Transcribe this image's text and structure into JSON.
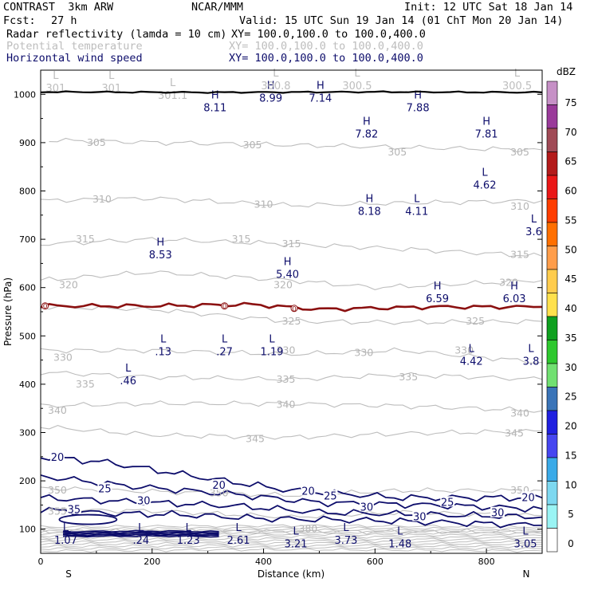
{
  "header": {
    "title": "CONTRAST  3km ARW",
    "source": "NCAR/MMM",
    "init": "Init: 12 UTC Sat 18 Jan 14",
    "fcst_label": "Fcst:",
    "fcst_value": "27 h",
    "valid": "Valid: 15 UTC Sun 19 Jan 14 (01 ChT Mon 20 Jan 14)",
    "fields": [
      {
        "name": "Radar reflectivity (lamda = 10 cm)",
        "xy": "XY= 100.0,100.0 to 100.0,400.0",
        "color": "#000000"
      },
      {
        "name": "Potential temperature",
        "xy": "XY= 100.0,100.0 to 100.0,400.0",
        "color": "#bdbdbd"
      },
      {
        "name": "Horizontal wind speed",
        "xy": "XY= 100.0,100.0 to 100.0,400.0",
        "color": "#0d0d6b"
      }
    ]
  },
  "chart_data": {
    "type": "cross-section",
    "xlabel": "Distance (km)",
    "ylabel": "Pressure (hPa)",
    "xlim": [
      0,
      900
    ],
    "ylim": [
      1050,
      50
    ],
    "x_ticks": [
      "0",
      "200",
      "400",
      "600",
      "800"
    ],
    "y_ticks": [
      "100",
      "200",
      "300",
      "400",
      "500",
      "600",
      "700",
      "800",
      "900",
      "1000"
    ],
    "x_end_labels": {
      "left": "S",
      "right": "N"
    },
    "colorbar": {
      "unit": "dBZ",
      "levels": [
        "75",
        "70",
        "65",
        "60",
        "55",
        "50",
        "45",
        "40",
        "35",
        "30",
        "25",
        "20",
        "15",
        "10",
        "5",
        "0"
      ],
      "colors": [
        "#c690c6",
        "#9a3a9a",
        "#a04a56",
        "#b31a1a",
        "#ea1717",
        "#ff3d00",
        "#ff6f00",
        "#ff9d4a",
        "#ffcc4d",
        "#ffe14d",
        "#0fa01f",
        "#2ec82e",
        "#71e071",
        "#3a74b8",
        "#2020e0",
        "#4646f0",
        "#3aaae8",
        "#7dd8f0",
        "#9af4f4",
        "#ffffff"
      ]
    },
    "potential_temperature_levels": [
      {
        "label": "305",
        "values": [
          [
            15,
            905
          ],
          [
            225,
            900
          ],
          [
            450,
            895
          ],
          [
            650,
            890
          ],
          [
            900,
            885
          ]
        ]
      },
      {
        "label": "310",
        "values": [
          [
            0,
            780
          ],
          [
            200,
            785
          ],
          [
            450,
            770
          ],
          [
            650,
            775
          ],
          [
            900,
            780
          ]
        ]
      },
      {
        "label": "315",
        "values": [
          [
            0,
            690
          ],
          [
            200,
            700
          ],
          [
            450,
            690
          ],
          [
            650,
            680
          ],
          [
            900,
            665
          ]
        ]
      },
      {
        "label": "320",
        "values": [
          [
            0,
            615
          ],
          [
            200,
            632
          ],
          [
            450,
            615
          ],
          [
            600,
            600
          ],
          [
            900,
            615
          ]
        ]
      },
      {
        "label": "325",
        "values": [
          [
            0,
            560
          ],
          [
            200,
            555
          ],
          [
            450,
            530
          ],
          [
            650,
            528
          ],
          [
            900,
            530
          ]
        ]
      },
      {
        "label": "330",
        "values": [
          [
            0,
            470
          ],
          [
            200,
            470
          ],
          [
            450,
            462
          ],
          [
            650,
            470
          ],
          [
            900,
            445
          ]
        ]
      },
      {
        "label": "335",
        "values": [
          [
            0,
            425
          ],
          [
            200,
            415
          ],
          [
            450,
            410
          ],
          [
            650,
            420
          ],
          [
            900,
            410
          ]
        ]
      },
      {
        "label": "340",
        "values": [
          [
            0,
            355
          ],
          [
            200,
            360
          ],
          [
            450,
            360
          ],
          [
            650,
            355
          ],
          [
            900,
            345
          ]
        ]
      },
      {
        "label": "345",
        "values": [
          [
            0,
            312
          ],
          [
            200,
            295
          ],
          [
            450,
            290
          ],
          [
            650,
            298
          ],
          [
            900,
            303
          ]
        ]
      },
      {
        "label": "350",
        "values": [
          [
            0,
            185
          ],
          [
            200,
            178
          ],
          [
            450,
            170
          ],
          [
            650,
            180
          ],
          [
            900,
            180
          ]
        ]
      },
      {
        "label": "355",
        "values": [
          [
            0,
            140
          ],
          [
            200,
            138
          ],
          [
            450,
            125
          ],
          [
            650,
            135
          ],
          [
            900,
            128
          ]
        ]
      },
      {
        "label": "380",
        "values": [
          [
            0,
            95
          ],
          [
            450,
            95
          ],
          [
            900,
            95
          ]
        ]
      }
    ],
    "isotherm_zero": {
      "label": "0",
      "values": [
        [
          0,
          562
        ],
        [
          200,
          562
        ],
        [
          380,
          565
        ],
        [
          500,
          555
        ],
        [
          700,
          560
        ],
        [
          900,
          560
        ]
      ]
    },
    "wind_speed_contours": [
      {
        "label": "20",
        "values": [
          [
            0,
            250
          ],
          [
            120,
            238
          ],
          [
            300,
            205
          ],
          [
            450,
            180
          ],
          [
            650,
            165
          ],
          [
            900,
            165
          ]
        ]
      },
      {
        "label": "25",
        "values": [
          [
            0,
            210
          ],
          [
            150,
            190
          ],
          [
            350,
            172
          ],
          [
            500,
            155
          ],
          [
            700,
            150
          ],
          [
            900,
            142
          ]
        ]
      },
      {
        "label": "30",
        "values": [
          [
            0,
            165
          ],
          [
            200,
            155
          ],
          [
            350,
            148
          ],
          [
            500,
            135
          ],
          [
            700,
            130
          ],
          [
            900,
            125
          ]
        ]
      },
      {
        "label": "35",
        "values": [
          [
            0,
            140
          ],
          [
            120,
            133
          ],
          [
            250,
            130
          ],
          [
            400,
            122
          ],
          [
            600,
            118
          ],
          [
            900,
            108
          ]
        ]
      }
    ],
    "wind_labels": [
      {
        "label": "35",
        "x": 60,
        "p": 140
      },
      {
        "label": "30",
        "x": 185,
        "p": 158
      },
      {
        "label": "25",
        "x": 115,
        "p": 183
      },
      {
        "label": "20",
        "x": 30,
        "p": 248
      },
      {
        "label": "20",
        "x": 320,
        "p": 190
      },
      {
        "label": "25",
        "x": 520,
        "p": 168
      },
      {
        "label": "20",
        "x": 480,
        "p": 178
      },
      {
        "label": "30",
        "x": 585,
        "p": 145
      },
      {
        "label": "30",
        "x": 680,
        "p": 125
      },
      {
        "label": "25",
        "x": 730,
        "p": 155
      },
      {
        "label": "30",
        "x": 820,
        "p": 133
      },
      {
        "label": "20",
        "x": 875,
        "p": 165
      }
    ],
    "theta_labels": [
      {
        "label": "380",
        "x": 480,
        "p": 100
      },
      {
        "label": "355",
        "x": 30,
        "p": 137
      },
      {
        "label": "350",
        "x": 30,
        "p": 180
      },
      {
        "label": "350",
        "x": 320,
        "p": 175
      },
      {
        "label": "350",
        "x": 860,
        "p": 180
      },
      {
        "label": "345",
        "x": 385,
        "p": 287
      },
      {
        "label": "345",
        "x": 850,
        "p": 298
      },
      {
        "label": "340",
        "x": 30,
        "p": 345
      },
      {
        "label": "340",
        "x": 440,
        "p": 358
      },
      {
        "label": "340",
        "x": 860,
        "p": 340
      },
      {
        "label": "335",
        "x": 80,
        "p": 400
      },
      {
        "label": "335",
        "x": 440,
        "p": 410
      },
      {
        "label": "335",
        "x": 660,
        "p": 415
      },
      {
        "label": "330",
        "x": 40,
        "p": 455
      },
      {
        "label": "330",
        "x": 440,
        "p": 470
      },
      {
        "label": "330",
        "x": 580,
        "p": 465
      },
      {
        "label": "330",
        "x": 760,
        "p": 470
      },
      {
        "label": "325",
        "x": 450,
        "p": 530
      },
      {
        "label": "325",
        "x": 780,
        "p": 530
      },
      {
        "label": "320",
        "x": 50,
        "p": 605
      },
      {
        "label": "320",
        "x": 435,
        "p": 605
      },
      {
        "label": "320",
        "x": 840,
        "p": 610
      },
      {
        "label": "315",
        "x": 80,
        "p": 700
      },
      {
        "label": "315",
        "x": 360,
        "p": 700
      },
      {
        "label": "315",
        "x": 450,
        "p": 690
      },
      {
        "label": "315",
        "x": 860,
        "p": 668
      },
      {
        "label": "310",
        "x": 110,
        "p": 783
      },
      {
        "label": "310",
        "x": 400,
        "p": 772
      },
      {
        "label": "310",
        "x": 860,
        "p": 768
      },
      {
        "label": "305",
        "x": 100,
        "p": 900
      },
      {
        "label": "305",
        "x": 380,
        "p": 895
      },
      {
        "label": "305",
        "x": 640,
        "p": 880
      },
      {
        "label": "305",
        "x": 860,
        "p": 880
      }
    ],
    "extrema": [
      {
        "type": "L",
        "value": "1.07",
        "x": 45,
        "p": 90,
        "color": "dark"
      },
      {
        "type": "L",
        "value": ".24",
        "x": 180,
        "p": 90,
        "color": "dark"
      },
      {
        "type": "L",
        "value": "1.23",
        "x": 265,
        "p": 90,
        "color": "dark"
      },
      {
        "type": "L",
        "value": "2.61",
        "x": 355,
        "p": 90,
        "color": "dark"
      },
      {
        "type": "L",
        "value": "3.21",
        "x": 458,
        "p": 82,
        "color": "dark"
      },
      {
        "type": "L",
        "value": "3.73",
        "x": 548,
        "p": 90,
        "color": "dark"
      },
      {
        "type": "L",
        "value": "1.48",
        "x": 645,
        "p": 82,
        "color": "dark"
      },
      {
        "type": "L",
        "value": "3.05",
        "x": 870,
        "p": 82,
        "color": "dark"
      },
      {
        "type": "L",
        "value": ".46",
        "x": 157,
        "p": 420,
        "color": "dark"
      },
      {
        "type": "L",
        "value": ".13",
        "x": 220,
        "p": 480,
        "color": "dark"
      },
      {
        "type": "L",
        "value": ".27",
        "x": 330,
        "p": 480,
        "color": "dark"
      },
      {
        "type": "L",
        "value": "1.19",
        "x": 415,
        "p": 480,
        "color": "dark"
      },
      {
        "type": "L",
        "value": "4.42",
        "x": 773,
        "p": 460,
        "color": "dark"
      },
      {
        "type": "L",
        "value": "3.8",
        "x": 880,
        "p": 460,
        "color": "dark"
      },
      {
        "type": "H",
        "value": "6.59",
        "x": 712,
        "p": 590,
        "color": "dark"
      },
      {
        "type": "H",
        "value": "6.03",
        "x": 850,
        "p": 590,
        "color": "dark"
      },
      {
        "type": "H",
        "value": "5.40",
        "x": 443,
        "p": 640,
        "color": "dark"
      },
      {
        "type": "H",
        "value": "8.53",
        "x": 215,
        "p": 680,
        "color": "dark"
      },
      {
        "type": "L",
        "value": "3.6",
        "x": 885,
        "p": 728,
        "color": "dark"
      },
      {
        "type": "H",
        "value": "8.18",
        "x": 590,
        "p": 770,
        "color": "dark"
      },
      {
        "type": "L",
        "value": "4.11",
        "x": 675,
        "p": 770,
        "color": "dark"
      },
      {
        "type": "L",
        "value": "4.62",
        "x": 797,
        "p": 825,
        "color": "dark"
      },
      {
        "type": "H",
        "value": "7.82",
        "x": 585,
        "p": 930,
        "color": "dark"
      },
      {
        "type": "H",
        "value": "7.81",
        "x": 800,
        "p": 930,
        "color": "dark"
      },
      {
        "type": "H",
        "value": "8.11",
        "x": 313,
        "p": 985,
        "color": "dark"
      },
      {
        "type": "H",
        "value": "7.88",
        "x": 677,
        "p": 985,
        "color": "dark"
      },
      {
        "type": "H",
        "value": "8.99",
        "x": 413,
        "p": 1005,
        "color": "dark"
      },
      {
        "type": "H",
        "value": "7.14",
        "x": 502,
        "p": 1005,
        "color": "dark"
      },
      {
        "type": "L",
        "value": "301",
        "x": 27,
        "p": 1025,
        "color": "gray"
      },
      {
        "type": "L",
        "value": "301",
        "x": 127,
        "p": 1025,
        "color": "gray"
      },
      {
        "type": "L",
        "value": "301.1",
        "x": 237,
        "p": 1010,
        "color": "gray"
      },
      {
        "type": "L",
        "value": "300.8",
        "x": 422,
        "p": 1030,
        "color": "gray"
      },
      {
        "type": "L",
        "value": "300.5",
        "x": 568,
        "p": 1030,
        "color": "gray"
      },
      {
        "type": "L",
        "value": "300.5",
        "x": 855,
        "p": 1030,
        "color": "gray"
      }
    ]
  }
}
